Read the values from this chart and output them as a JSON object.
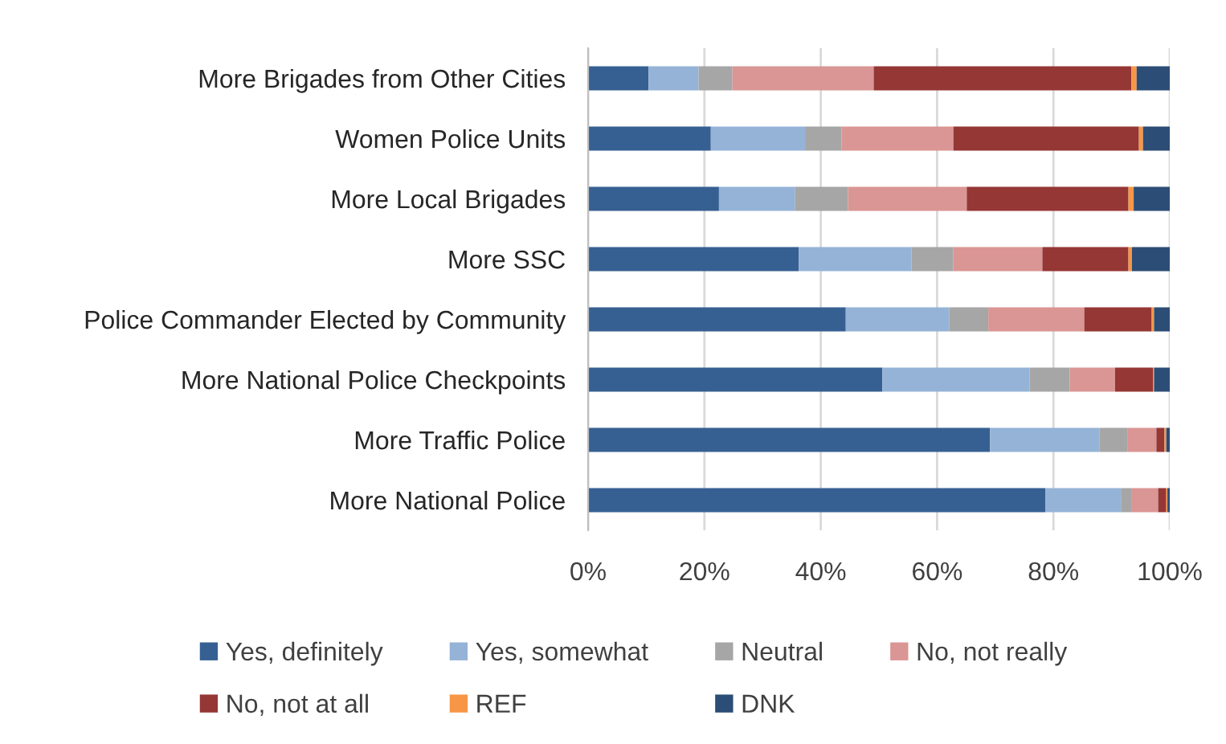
{
  "chart_data": {
    "type": "bar",
    "orientation": "horizontal",
    "stacked": true,
    "categories": [
      "More Brigades from Other Cities",
      "Women Police Units",
      "More Local Brigades",
      "More SSC",
      "Police Commander Elected by Community",
      "More National Police Checkpoints",
      "More Traffic Police",
      "More National Police"
    ],
    "series": [
      {
        "name": "Yes, definitely",
        "color": "#376092",
        "values": [
          10.4,
          21.1,
          22.5,
          36.2,
          44.3,
          50.6,
          69.1,
          78.6
        ]
      },
      {
        "name": "Yes, somewhat",
        "color": "#95b3d7",
        "values": [
          8.6,
          16.2,
          13.1,
          19.4,
          17.8,
          25.3,
          18.8,
          13.0
        ]
      },
      {
        "name": "Neutral",
        "color": "#a6a6a6",
        "values": [
          5.8,
          6.3,
          9.1,
          7.2,
          6.7,
          6.9,
          4.8,
          1.9
        ]
      },
      {
        "name": "No, not really",
        "color": "#da9694",
        "values": [
          24.3,
          19.2,
          20.4,
          15.3,
          16.5,
          7.8,
          5.0,
          4.5
        ]
      },
      {
        "name": "No, not at all",
        "color": "#953735",
        "values": [
          44.3,
          31.9,
          27.8,
          14.8,
          11.6,
          6.5,
          1.4,
          1.4
        ]
      },
      {
        "name": "REF",
        "color": "#f79646",
        "values": [
          0.9,
          0.7,
          0.9,
          0.6,
          0.4,
          0.2,
          0.3,
          0.2
        ]
      },
      {
        "name": "DNK",
        "color": "#2c4d75",
        "values": [
          5.7,
          4.6,
          6.2,
          6.5,
          2.7,
          2.7,
          0.6,
          0.4
        ]
      }
    ],
    "xlim": [
      0,
      100
    ],
    "xticks": [
      {
        "value": 0,
        "label": "0%"
      },
      {
        "value": 20,
        "label": "20%"
      },
      {
        "value": 40,
        "label": "40%"
      },
      {
        "value": 60,
        "label": "60%"
      },
      {
        "value": 80,
        "label": "80%"
      },
      {
        "value": 100,
        "label": "100%"
      }
    ],
    "grid": "x",
    "legend": "bottom"
  }
}
